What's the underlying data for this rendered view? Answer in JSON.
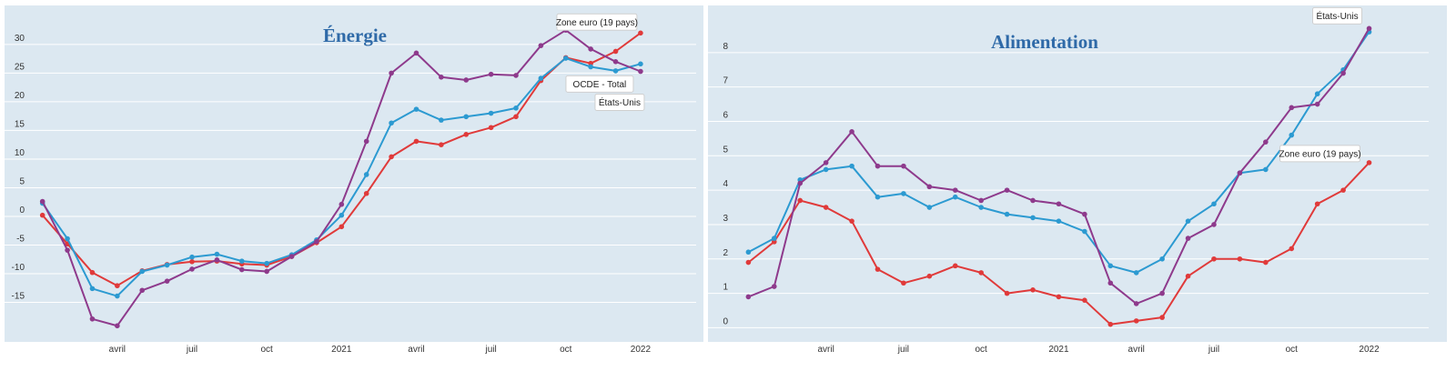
{
  "chart_data": [
    {
      "type": "line",
      "title": "Énergie",
      "xlabel": "",
      "ylabel": "",
      "ylim": [
        -20,
        33
      ],
      "yticks": [
        30,
        25,
        20,
        15,
        10,
        5,
        0,
        -5,
        -10,
        -15
      ],
      "xticks": [
        {
          "label": "avril",
          "index": 3
        },
        {
          "label": "juil",
          "index": 6
        },
        {
          "label": "oct",
          "index": 9
        },
        {
          "label": "2021",
          "index": 12
        },
        {
          "label": "avril",
          "index": 15
        },
        {
          "label": "juil",
          "index": 18
        },
        {
          "label": "oct",
          "index": 21
        },
        {
          "label": "2022",
          "index": 24
        }
      ],
      "grid": true,
      "x_count": 26,
      "series": [
        {
          "name": "Zone euro (19 pays)",
          "color": "#e03a3a",
          "values": [
            0.2,
            -4.8,
            -9.8,
            -12.1,
            -9.5,
            -8.4,
            -7.9,
            -7.8,
            -8.3,
            -8.5,
            -7.0,
            -4.6,
            -1.8,
            4.0,
            10.4,
            13.1,
            12.5,
            14.3,
            15.5,
            17.4,
            23.7,
            27.7,
            26.7,
            28.8,
            32.0
          ]
        },
        {
          "name": "OCDE - Total",
          "color": "#2c9ad1",
          "values": [
            2.3,
            -3.9,
            -12.6,
            -13.9,
            -9.6,
            -8.5,
            -7.1,
            -6.6,
            -7.8,
            -8.2,
            -6.7,
            -4.1,
            0.2,
            7.3,
            16.3,
            18.7,
            16.8,
            17.4,
            18.0,
            18.9,
            24.1,
            27.6,
            26.1,
            25.4,
            26.6
          ]
        },
        {
          "name": "États-Unis",
          "color": "#8e3a8c",
          "values": [
            2.6,
            -5.9,
            -17.9,
            -19.1,
            -12.9,
            -11.3,
            -9.2,
            -7.6,
            -9.3,
            -9.6,
            -7.0,
            -4.4,
            2.1,
            13.1,
            25.0,
            28.5,
            24.3,
            23.8,
            24.8,
            24.6,
            29.8,
            32.5,
            29.2,
            27.0,
            25.3
          ]
        }
      ],
      "annotations": [
        "Zone euro (19 pays)",
        "OCDE - Total",
        "États-Unis"
      ]
    },
    {
      "type": "line",
      "title": "Alimentation",
      "xlabel": "",
      "ylabel": "",
      "ylim": [
        -0.2,
        9.0
      ],
      "yticks": [
        8,
        7,
        6,
        5,
        4,
        3,
        2,
        1,
        0
      ],
      "xticks": [
        {
          "label": "avril",
          "index": 3
        },
        {
          "label": "juil",
          "index": 6
        },
        {
          "label": "oct",
          "index": 9
        },
        {
          "label": "2021",
          "index": 12
        },
        {
          "label": "avril",
          "index": 15
        },
        {
          "label": "juil",
          "index": 18
        },
        {
          "label": "oct",
          "index": 21
        },
        {
          "label": "2022",
          "index": 24
        }
      ],
      "grid": true,
      "x_count": 26,
      "series": [
        {
          "name": "Zone euro (19 pays)",
          "color": "#e03a3a",
          "values": [
            1.9,
            2.5,
            3.7,
            3.5,
            3.1,
            1.7,
            1.3,
            1.5,
            1.8,
            1.6,
            1.0,
            1.1,
            0.9,
            0.8,
            0.1,
            0.2,
            0.3,
            1.5,
            2.0,
            2.0,
            1.9,
            2.3,
            3.6,
            4.0,
            4.8
          ]
        },
        {
          "name": "OCDE - Total",
          "color": "#2c9ad1",
          "values": [
            2.2,
            2.6,
            4.3,
            4.6,
            4.7,
            3.8,
            3.9,
            3.5,
            3.8,
            3.5,
            3.3,
            3.2,
            3.1,
            2.8,
            1.8,
            1.6,
            2.0,
            3.1,
            3.6,
            4.5,
            4.6,
            5.6,
            6.8,
            7.5,
            8.6
          ]
        },
        {
          "name": "États-Unis",
          "color": "#8e3a8c",
          "values": [
            0.9,
            1.2,
            4.2,
            4.8,
            5.7,
            4.7,
            4.7,
            4.1,
            4.0,
            3.7,
            4.0,
            3.7,
            3.6,
            3.3,
            1.3,
            0.7,
            1.0,
            2.6,
            3.0,
            4.5,
            5.4,
            6.4,
            6.5,
            7.4,
            8.7
          ]
        }
      ],
      "annotations": [
        "États-Unis",
        "Zone euro (19 pays)"
      ]
    }
  ]
}
